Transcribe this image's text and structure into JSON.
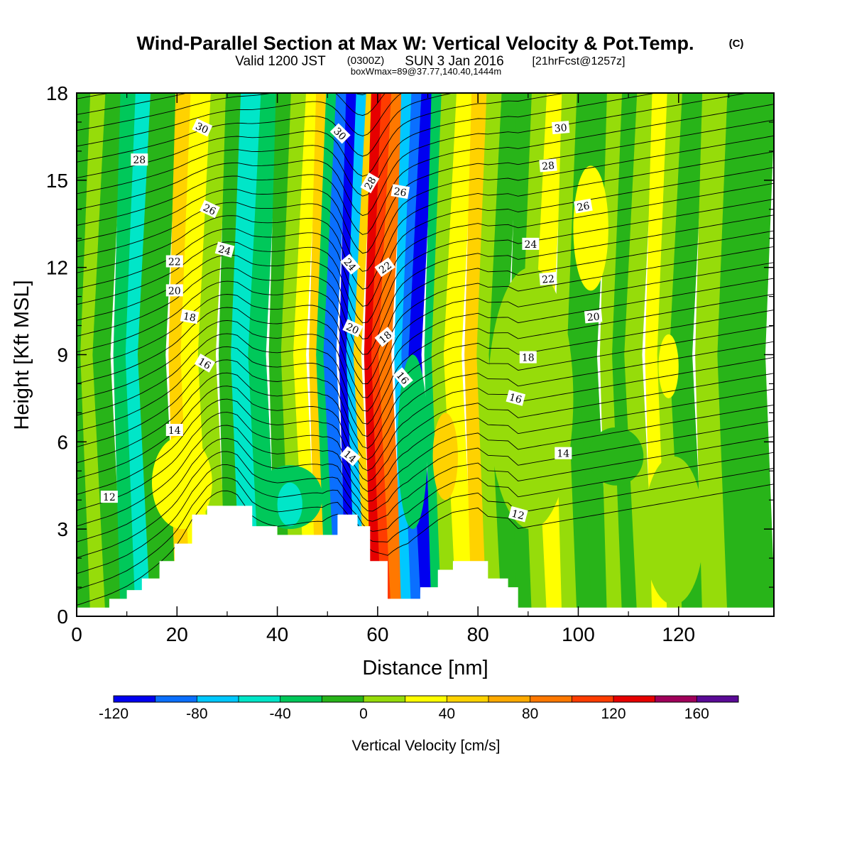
{
  "titles": {
    "main": "Wind-Parallel Section at Max W: Vertical Velocity & Pot.Temp.",
    "main_suffix": "(C)",
    "valid_a": "Valid 1200 JST",
    "valid_b": "(0300Z)",
    "valid_c": "SUN 3 Jan 2016",
    "valid_d": "[21hrFcst@1257z]",
    "box": "boxWmax=89@37.77,140.40,1444m"
  },
  "colorbar": {
    "title": "Vertical Velocity [cm/s]",
    "bounds": [
      -120,
      -100,
      -80,
      -60,
      -40,
      -20,
      0,
      20,
      40,
      60,
      80,
      100,
      120,
      140,
      160,
      180
    ],
    "colors": [
      "#0000f0",
      "#0a6fff",
      "#00c8ff",
      "#00e6c8",
      "#00c85a",
      "#28b419",
      "#96dc0a",
      "#ffff00",
      "#ffd200",
      "#ffaa00",
      "#ff7800",
      "#ff3c00",
      "#e60000",
      "#a0005a",
      "#5a0a96"
    ],
    "tick_labels": [
      "-120",
      "-80",
      "-40",
      "0",
      "40",
      "80",
      "120",
      "160"
    ],
    "tick_values": [
      -120,
      -80,
      -40,
      0,
      40,
      80,
      120,
      160
    ]
  },
  "chart_data": {
    "type": "heatmap",
    "title": "Wind-Parallel Section at Max W: Vertical Velocity & Pot.Temp.",
    "xlabel": "Distance [nm]",
    "ylabel": "Height [Kft MSL]",
    "xlim": [
      0,
      139
    ],
    "ylim": [
      0,
      18
    ],
    "x_ticks": [
      0,
      20,
      40,
      60,
      80,
      100,
      120
    ],
    "x_tick_labels": [
      "0",
      "20",
      "40",
      "60",
      "80",
      "100",
      "120"
    ],
    "y_ticks": [
      0,
      3,
      6,
      9,
      12,
      15,
      18
    ],
    "y_tick_labels": [
      "0",
      "3",
      "6",
      "9",
      "12",
      "15",
      "18"
    ],
    "shaded_field": "Vertical Velocity [cm/s]",
    "band_colors": [
      "#28b419",
      "#96dc0a",
      "#28b419",
      "#00c85a",
      "#00e6c8",
      "#28b419",
      "#ffd200",
      "#ffff00",
      "#96dc0a",
      "#28b419",
      "#00e6c8",
      "#00c85a",
      "#28b419",
      "#96dc0a",
      "#ffff00",
      "#ffd200",
      "#00c85a",
      "#0a6fff",
      "#0000f0",
      "#00c8ff",
      "#ffd200",
      "#e60000",
      "#ff3c00",
      "#ff7800",
      "#00c8ff",
      "#0a6fff",
      "#0000f0",
      "#00c85a",
      "#96dc0a",
      "#ffff00",
      "#ffd200",
      "#96dc0a",
      "#28b419",
      "#28b419",
      "#96dc0a",
      "#ffff00",
      "#96dc0a",
      "#28b419",
      "#28b419",
      "#96dc0a",
      "#28b419",
      "#96dc0a",
      "#ffff00",
      "#96dc0a",
      "#28b419",
      "#96dc0a",
      "#28b419"
    ],
    "band_edges_nm": [
      0,
      3,
      6,
      9,
      12,
      15,
      20,
      23,
      27,
      30,
      33,
      37,
      40,
      43,
      46,
      48,
      50,
      52,
      54,
      56,
      58,
      59,
      61,
      63,
      65,
      67,
      69,
      71,
      73,
      76,
      79,
      82,
      85,
      88,
      91,
      94,
      97,
      100,
      103,
      106,
      109,
      112,
      115,
      118,
      121,
      125,
      130,
      139
    ],
    "patches": [
      {
        "x": [
          15,
          27
        ],
        "y": [
          3.0,
          6.2
        ],
        "color": "#ffff00"
      },
      {
        "x": [
          36,
          49
        ],
        "y": [
          3.0,
          5.2
        ],
        "color": "#00c85a"
      },
      {
        "x": [
          40,
          45
        ],
        "y": [
          3.1,
          4.6
        ],
        "color": "#00e6c8"
      },
      {
        "x": [
          64,
          70
        ],
        "y": [
          3.0,
          9.0
        ],
        "color": "#00c85a"
      },
      {
        "x": [
          71,
          76
        ],
        "y": [
          4.0,
          7.0
        ],
        "color": "#ffd200"
      },
      {
        "x": [
          113,
          125
        ],
        "y": [
          0.4,
          5.5
        ],
        "color": "#96dc0a"
      },
      {
        "x": [
          116,
          120
        ],
        "y": [
          7.5,
          9.7
        ],
        "color": "#ffff00"
      },
      {
        "x": [
          99,
          106
        ],
        "y": [
          11.2,
          15.5
        ],
        "color": "#ffff00"
      },
      {
        "x": [
          82,
          99
        ],
        "y": [
          3.0,
          12.0
        ],
        "color": "#96dc0a"
      },
      {
        "x": [
          102,
          113
        ],
        "y": [
          4.5,
          6.5
        ],
        "color": "#28b419"
      }
    ],
    "terrain_kft": [
      [
        0,
        0.3
      ],
      [
        6.5,
        0.6
      ],
      [
        10,
        0.9
      ],
      [
        13,
        1.3
      ],
      [
        16.5,
        1.9
      ],
      [
        19.5,
        2.5
      ],
      [
        23,
        3.5
      ],
      [
        26,
        3.8
      ],
      [
        32,
        3.8
      ],
      [
        35,
        3.1
      ],
      [
        40,
        2.8
      ],
      [
        49,
        2.8
      ],
      [
        52,
        3.5
      ],
      [
        56,
        3.1
      ],
      [
        58.5,
        1.9
      ],
      [
        62,
        0.6
      ],
      [
        66,
        0.6
      ],
      [
        68.5,
        1.0
      ],
      [
        72,
        1.6
      ],
      [
        75,
        1.9
      ],
      [
        80,
        1.9
      ],
      [
        82,
        1.3
      ],
      [
        86,
        1.0
      ],
      [
        88,
        0.3
      ],
      [
        139,
        0.3
      ]
    ],
    "contour_field": "Potential Temperature [C]",
    "contour_labels": [
      {
        "text": "12",
        "x": 6.5,
        "y": 4.1,
        "rot": 0
      },
      {
        "text": "12",
        "x": 88,
        "y": 3.5,
        "rot": 15
      },
      {
        "text": "14",
        "x": 19.5,
        "y": 6.4,
        "rot": 0
      },
      {
        "text": "14",
        "x": 54.5,
        "y": 5.5,
        "rot": 40
      },
      {
        "text": "14",
        "x": 97,
        "y": 5.6,
        "rot": 0
      },
      {
        "text": "16",
        "x": 25.5,
        "y": 8.7,
        "rot": 30
      },
      {
        "text": "16",
        "x": 65,
        "y": 8.2,
        "rot": 50
      },
      {
        "text": "16",
        "x": 87.5,
        "y": 7.5,
        "rot": 15
      },
      {
        "text": "18",
        "x": 22.5,
        "y": 10.3,
        "rot": 10
      },
      {
        "text": "18",
        "x": 61.5,
        "y": 9.6,
        "rot": -40
      },
      {
        "text": "18",
        "x": 90,
        "y": 8.9,
        "rot": 0
      },
      {
        "text": "20",
        "x": 19.5,
        "y": 11.2,
        "rot": 0
      },
      {
        "text": "20",
        "x": 55,
        "y": 9.9,
        "rot": 25
      },
      {
        "text": "20",
        "x": 103,
        "y": 10.3,
        "rot": -5
      },
      {
        "text": "22",
        "x": 19.5,
        "y": 12.2,
        "rot": 0
      },
      {
        "text": "22",
        "x": 61.5,
        "y": 12.0,
        "rot": -35
      },
      {
        "text": "22",
        "x": 94,
        "y": 11.6,
        "rot": -5
      },
      {
        "text": "24",
        "x": 29.5,
        "y": 12.6,
        "rot": 15
      },
      {
        "text": "24",
        "x": 54.5,
        "y": 12.1,
        "rot": 50
      },
      {
        "text": "24",
        "x": 90.5,
        "y": 12.8,
        "rot": 0
      },
      {
        "text": "26",
        "x": 26.5,
        "y": 14.0,
        "rot": 25
      },
      {
        "text": "26",
        "x": 64.5,
        "y": 14.6,
        "rot": 10
      },
      {
        "text": "26",
        "x": 101,
        "y": 14.1,
        "rot": -10
      },
      {
        "text": "28",
        "x": 12.5,
        "y": 15.7,
        "rot": 0
      },
      {
        "text": "28",
        "x": 58.5,
        "y": 14.9,
        "rot": -60
      },
      {
        "text": "28",
        "x": 94,
        "y": 15.5,
        "rot": -5
      },
      {
        "text": "30",
        "x": 25,
        "y": 16.8,
        "rot": 25
      },
      {
        "text": "30",
        "x": 52.5,
        "y": 16.6,
        "rot": 45
      },
      {
        "text": "30",
        "x": 96.5,
        "y": 16.8,
        "rot": -5
      }
    ]
  }
}
